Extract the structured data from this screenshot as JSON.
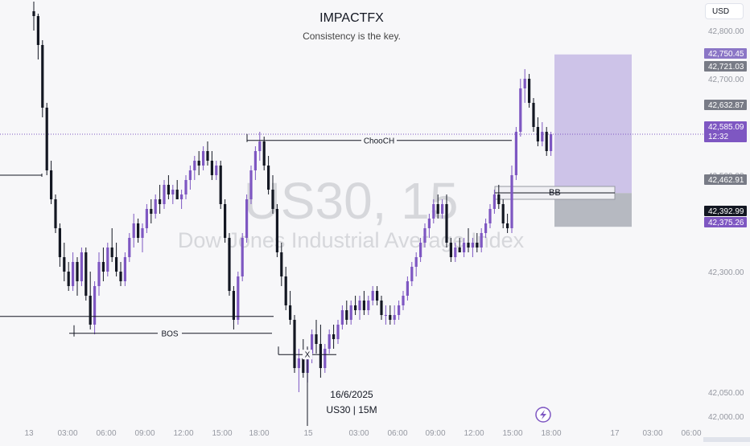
{
  "header": {
    "title": "IMPACTFX",
    "subtitle": "Consistency is the key."
  },
  "watermark": {
    "symbol": "US30, 15",
    "name": "Dow Jones Industrial Average Index"
  },
  "currency_button": "USD",
  "footer": {
    "date": "16/6/2025",
    "symbol": "US30 | 15M"
  },
  "annotations": {
    "choch": "ChooCH",
    "bos": "BOS",
    "bb": "BB",
    "x": "X"
  },
  "colors": {
    "up": "#7e57c2",
    "down": "#131722",
    "target_zone": "#c8bde6",
    "stop_zone": "#b2b5be",
    "price_axis": "#9598a1"
  },
  "chart_data": {
    "type": "candlestick",
    "title": "IMPACTFX",
    "subtitle": "Consistency is the key.",
    "symbol": "US30",
    "timeframe": "15",
    "y_ticks": [
      42800,
      42750,
      42700,
      42650,
      42600,
      42550,
      42500,
      42450,
      42400,
      42350,
      42300,
      42250,
      42200,
      42150,
      42100,
      42050,
      42000,
      41950
    ],
    "y_tick_labels": [
      "42,800.00",
      "",
      "42,700.00",
      "42,650.00",
      "42,600.00",
      "",
      "42,500.00",
      "",
      "",
      "",
      "42,300.00",
      "",
      "",
      "",
      "",
      "42,050.00",
      "42,000.00",
      "41,950.00"
    ],
    "ylim": [
      41930,
      42830
    ],
    "x_tick_labels": [
      "13",
      "03:00",
      "06:00",
      "09:00",
      "12:00",
      "15:00",
      "18:00",
      "15",
      "03:00",
      "06:00",
      "09:00",
      "12:00",
      "15:00",
      "18:00",
      "17",
      "03:00",
      "06:00"
    ],
    "price_labels": [
      {
        "text": "42,750.45",
        "value": 42750.45,
        "kind": "target"
      },
      {
        "text": "42,721.03",
        "value": 42721.03,
        "kind": "level"
      },
      {
        "text": "42,632.87",
        "value": 42632.87,
        "kind": "level"
      },
      {
        "text": "42,585.09",
        "value": 42585.09,
        "kind": "last",
        "countdown": "12:32"
      },
      {
        "text": "42,462.91",
        "value": 42462.91,
        "kind": "level"
      },
      {
        "text": "42,392.99",
        "value": 42392.99,
        "kind": "dark"
      },
      {
        "text": "42,375.26",
        "value": 42375.26,
        "kind": "stop"
      }
    ],
    "current_price": 42585.09,
    "levels": {
      "choch": 42572,
      "bos": 42172,
      "left_level": 42500,
      "low_line": 42128,
      "bb": 42460
    },
    "position": {
      "entry": 42462.91,
      "target": 42750.45,
      "stop": 42392.99
    },
    "candles": [
      [
        42840,
        42860,
        42800,
        42830
      ],
      [
        42830,
        42835,
        42740,
        42770
      ],
      [
        42770,
        42780,
        42620,
        42640
      ],
      [
        42640,
        42650,
        42500,
        42510
      ],
      [
        42510,
        42530,
        42440,
        42450
      ],
      [
        42450,
        42460,
        42380,
        42390
      ],
      [
        42390,
        42400,
        42310,
        42330
      ],
      [
        42330,
        42360,
        42280,
        42300
      ],
      [
        42300,
        42320,
        42260,
        42270
      ],
      [
        42270,
        42340,
        42260,
        42320
      ],
      [
        42320,
        42330,
        42250,
        42280
      ],
      [
        42280,
        42350,
        42270,
        42340
      ],
      [
        42340,
        42350,
        42240,
        42250
      ],
      [
        42250,
        42300,
        42180,
        42190
      ],
      [
        42190,
        42280,
        42170,
        42270
      ],
      [
        42270,
        42340,
        42250,
        42320
      ],
      [
        42320,
        42350,
        42280,
        42300
      ],
      [
        42300,
        42360,
        42290,
        42350
      ],
      [
        42350,
        42390,
        42320,
        42330
      ],
      [
        42330,
        42360,
        42290,
        42300
      ],
      [
        42300,
        42320,
        42270,
        42280
      ],
      [
        42280,
        42340,
        42270,
        42330
      ],
      [
        42330,
        42380,
        42320,
        42370
      ],
      [
        42370,
        42420,
        42350,
        42400
      ],
      [
        42400,
        42410,
        42360,
        42370
      ],
      [
        42370,
        42400,
        42340,
        42390
      ],
      [
        42390,
        42440,
        42380,
        42430
      ],
      [
        42430,
        42450,
        42400,
        42420
      ],
      [
        42420,
        42460,
        42410,
        42450
      ],
      [
        42450,
        42480,
        42420,
        42440
      ],
      [
        42440,
        42490,
        42430,
        42480
      ],
      [
        42480,
        42500,
        42450,
        42460
      ],
      [
        42460,
        42480,
        42440,
        42470
      ],
      [
        42470,
        42490,
        42450,
        42450
      ],
      [
        42450,
        42470,
        42430,
        42460
      ],
      [
        42460,
        42500,
        42450,
        42490
      ],
      [
        42490,
        42520,
        42470,
        42510
      ],
      [
        42510,
        42540,
        42490,
        42530
      ],
      [
        42530,
        42550,
        42500,
        42520
      ],
      [
        42520,
        42560,
        42510,
        42550
      ],
      [
        42550,
        42570,
        42520,
        42530
      ],
      [
        42530,
        42550,
        42490,
        42500
      ],
      [
        42500,
        42530,
        42490,
        42520
      ],
      [
        42520,
        42530,
        42430,
        42440
      ],
      [
        42440,
        42450,
        42360,
        42370
      ],
      [
        42370,
        42380,
        42250,
        42260
      ],
      [
        42260,
        42270,
        42180,
        42200
      ],
      [
        42200,
        42300,
        42190,
        42290
      ],
      [
        42290,
        42380,
        42280,
        42370
      ],
      [
        42370,
        42460,
        42360,
        42450
      ],
      [
        42450,
        42520,
        42440,
        42510
      ],
      [
        42510,
        42560,
        42490,
        42550
      ],
      [
        42550,
        42590,
        42530,
        42570
      ],
      [
        42570,
        42580,
        42510,
        42520
      ],
      [
        42520,
        42540,
        42460,
        42470
      ],
      [
        42470,
        42500,
        42420,
        42430
      ],
      [
        42430,
        42440,
        42330,
        42340
      ],
      [
        42340,
        42360,
        42270,
        42290
      ],
      [
        42290,
        42310,
        42220,
        42230
      ],
      [
        42230,
        42260,
        42190,
        42200
      ],
      [
        42200,
        42210,
        42090,
        42100
      ],
      [
        42100,
        42140,
        42050,
        42120
      ],
      [
        42120,
        42160,
        42080,
        42090
      ],
      [
        42090,
        42140,
        42070,
        42130
      ],
      [
        42130,
        42180,
        42110,
        42170
      ],
      [
        42170,
        42200,
        42130,
        42150
      ],
      [
        42150,
        42190,
        42080,
        42100
      ],
      [
        42100,
        42150,
        42090,
        42140
      ],
      [
        42140,
        42180,
        42130,
        42170
      ],
      [
        42170,
        42190,
        42140,
        42160
      ],
      [
        42160,
        42200,
        42150,
        42190
      ],
      [
        42190,
        42230,
        42180,
        42220
      ],
      [
        42220,
        42240,
        42190,
        42200
      ],
      [
        42200,
        42240,
        42190,
        42230
      ],
      [
        42230,
        42250,
        42210,
        42220
      ],
      [
        42220,
        42250,
        42200,
        42240
      ],
      [
        42240,
        42260,
        42210,
        42220
      ],
      [
        42220,
        42250,
        42210,
        42240
      ],
      [
        42240,
        42270,
        42230,
        42260
      ],
      [
        42260,
        42270,
        42230,
        42240
      ],
      [
        42240,
        42250,
        42200,
        42210
      ],
      [
        42210,
        42230,
        42190,
        42210
      ],
      [
        42210,
        42230,
        42190,
        42200
      ],
      [
        42200,
        42230,
        42190,
        42210
      ],
      [
        42210,
        42240,
        42200,
        42230
      ],
      [
        42230,
        42260,
        42220,
        42250
      ],
      [
        42250,
        42290,
        42240,
        42280
      ],
      [
        42280,
        42320,
        42270,
        42310
      ],
      [
        42310,
        42340,
        42290,
        42330
      ],
      [
        42330,
        42370,
        42320,
        42360
      ],
      [
        42360,
        42400,
        42350,
        42390
      ],
      [
        42390,
        42420,
        42370,
        42410
      ],
      [
        42410,
        42450,
        42400,
        42440
      ],
      [
        42440,
        42460,
        42410,
        42420
      ],
      [
        42420,
        42450,
        42410,
        42440
      ],
      [
        42440,
        42460,
        42350,
        42360
      ],
      [
        42360,
        42370,
        42320,
        42330
      ],
      [
        42330,
        42360,
        42320,
        42350
      ],
      [
        42350,
        42370,
        42340,
        42340
      ],
      [
        42340,
        42370,
        42330,
        42360
      ],
      [
        42360,
        42390,
        42340,
        42350
      ],
      [
        42350,
        42370,
        42330,
        42360
      ],
      [
        42360,
        42380,
        42340,
        42350
      ],
      [
        42350,
        42390,
        42340,
        42380
      ],
      [
        42380,
        42410,
        42370,
        42400
      ],
      [
        42400,
        42440,
        42390,
        42430
      ],
      [
        42430,
        42470,
        42420,
        42460
      ],
      [
        42460,
        42480,
        42430,
        42440
      ],
      [
        42440,
        42450,
        42390,
        42400
      ],
      [
        42400,
        42420,
        42380,
        42390
      ],
      [
        42390,
        42520,
        42380,
        42500
      ],
      [
        42500,
        42600,
        42490,
        42590
      ],
      [
        42590,
        42700,
        42580,
        42680
      ],
      [
        42680,
        42720,
        42650,
        42700
      ],
      [
        42700,
        42710,
        42640,
        42650
      ],
      [
        42650,
        42660,
        42590,
        42600
      ],
      [
        42600,
        42620,
        42560,
        42570
      ],
      [
        42570,
        42610,
        42560,
        42590
      ],
      [
        42590,
        42600,
        42540,
        42550
      ],
      [
        42550,
        42590,
        42540,
        42585
      ]
    ]
  }
}
